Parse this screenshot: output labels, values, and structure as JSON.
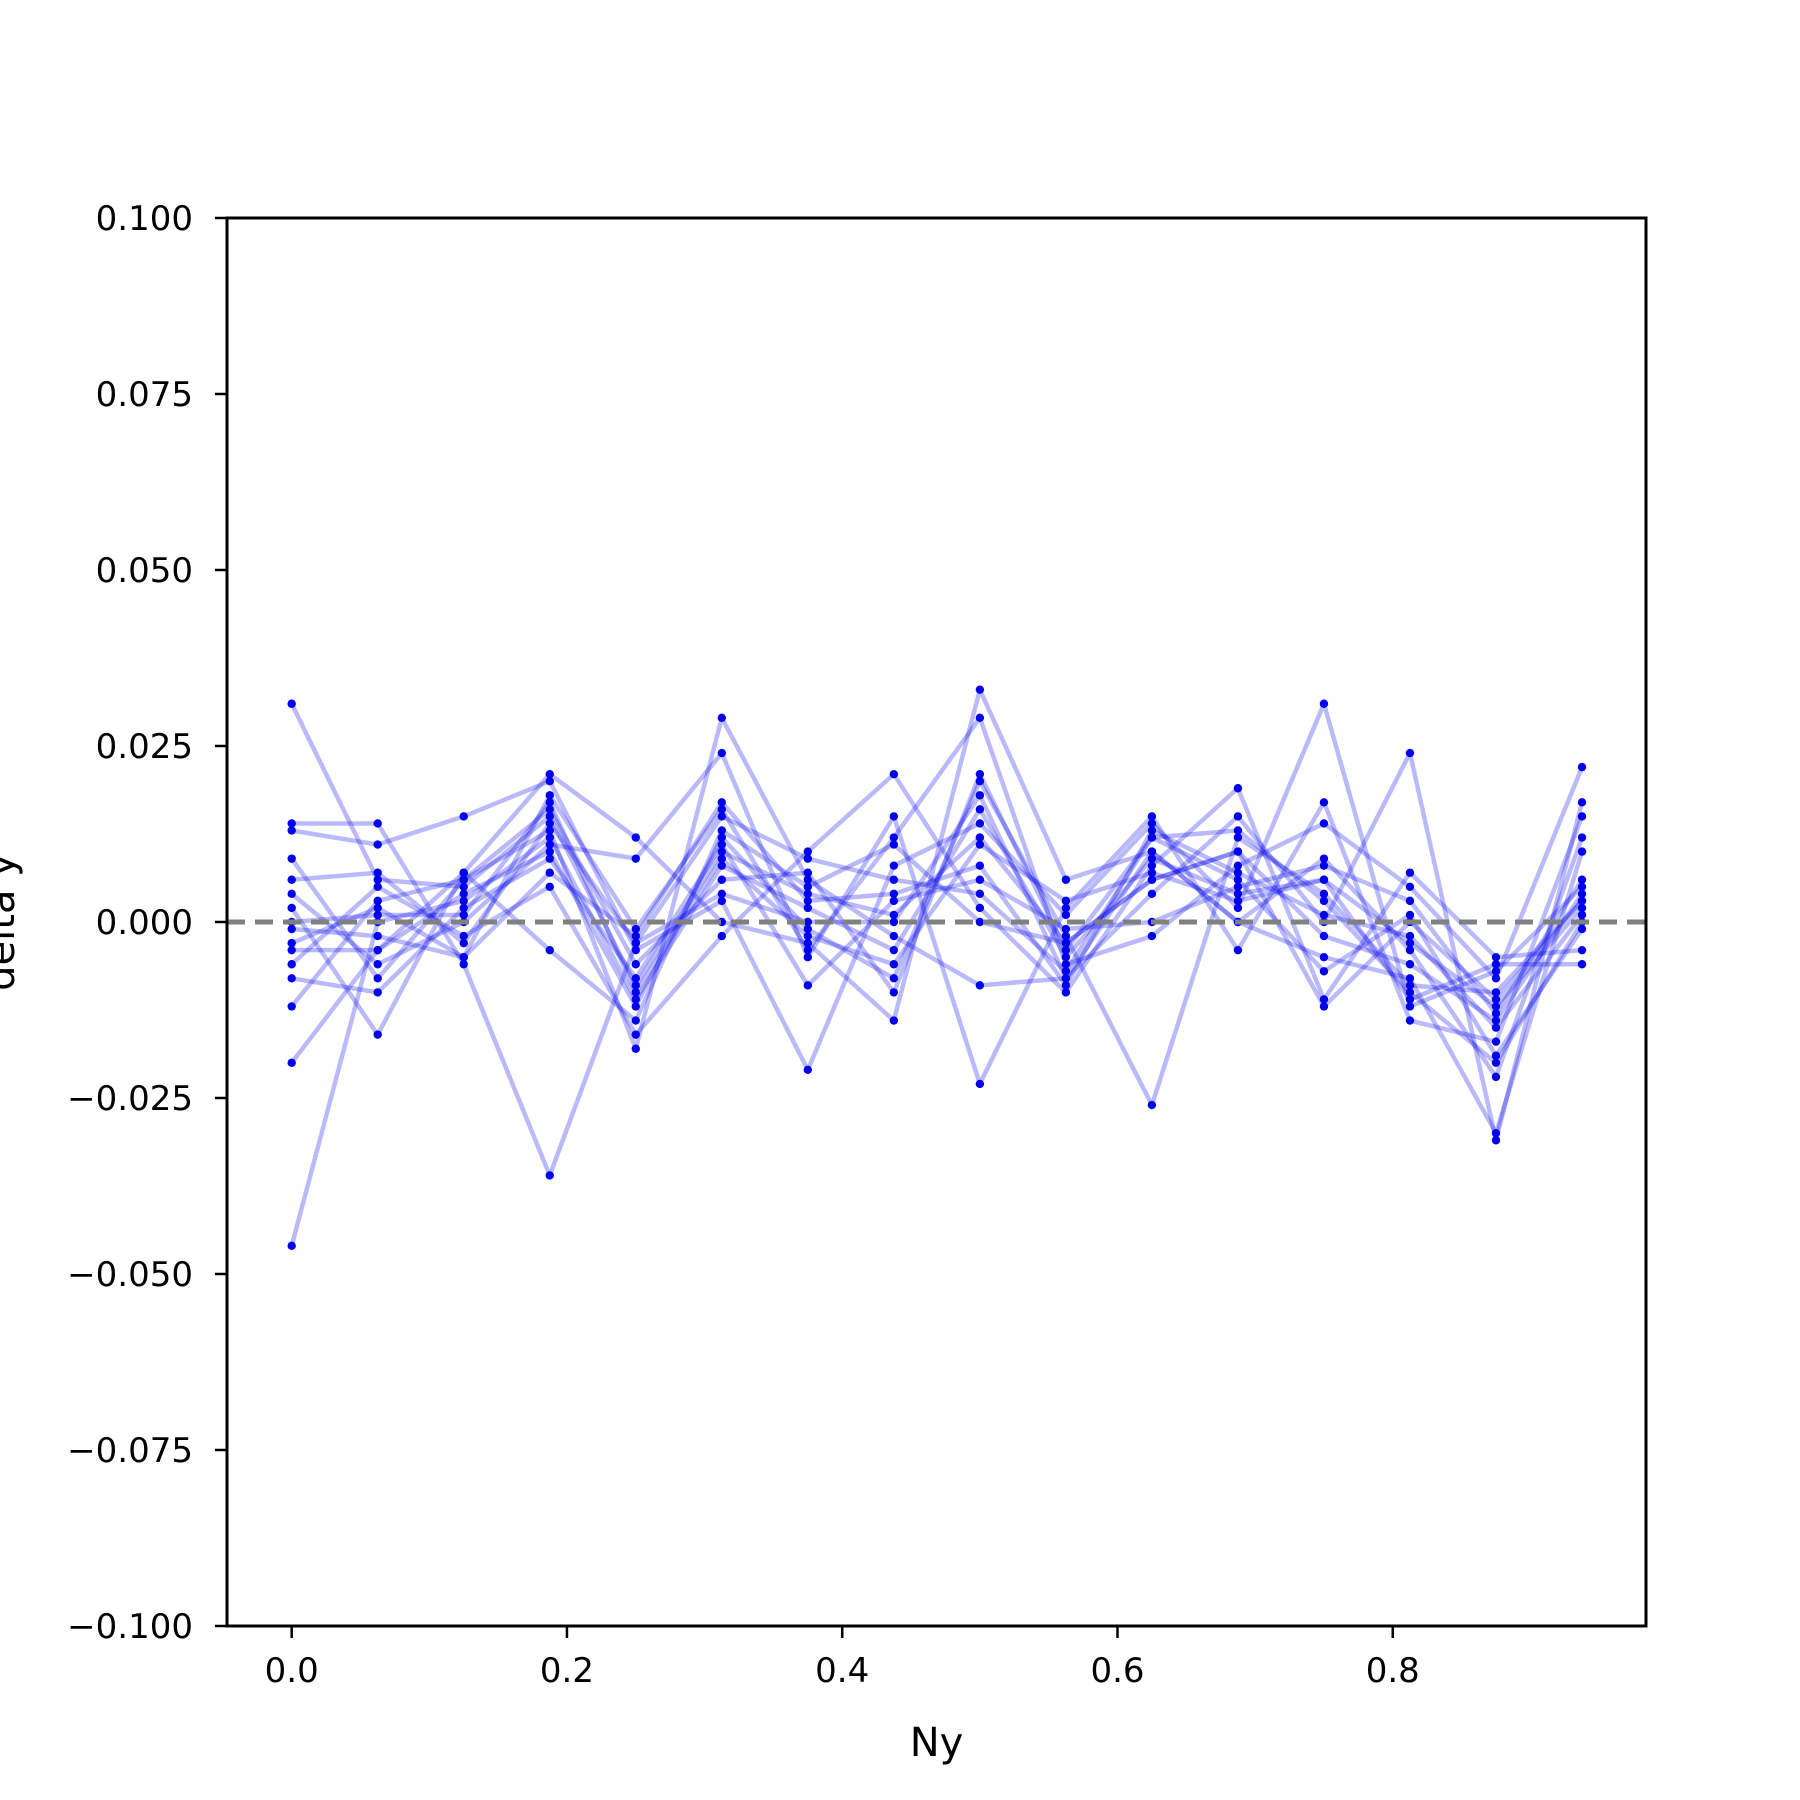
{
  "chart_data": {
    "type": "line",
    "title": "",
    "xlabel": "Ny",
    "ylabel": "delta y",
    "xlim": [
      -0.047,
      0.984
    ],
    "ylim": [
      -0.1,
      0.1
    ],
    "xticks": [
      0.0,
      0.2,
      0.4,
      0.6,
      0.8
    ],
    "xtick_labels": [
      "0.0",
      "0.2",
      "0.4",
      "0.6",
      "0.8"
    ],
    "yticks": [
      0.1,
      0.075,
      0.05,
      0.025,
      0.0,
      -0.025,
      -0.05,
      -0.075,
      -0.1
    ],
    "ytick_labels": [
      "0.100",
      "0.075",
      "0.050",
      "0.025",
      "0.000",
      "−0.025",
      "−0.050",
      "−0.075",
      "−0.100"
    ],
    "reference_line": {
      "y": 0.0,
      "style": "dashed",
      "color": "#808080"
    },
    "grid": false,
    "legend": "none",
    "series_color": "#0000ee",
    "x": [
      0.0,
      0.0625,
      0.125,
      0.1875,
      0.25,
      0.3125,
      0.375,
      0.4375,
      0.5,
      0.5625,
      0.625,
      0.6875,
      0.75,
      0.8125,
      0.875,
      0.9375
    ],
    "series": [
      {
        "values": [
          0.031,
          0.006,
          0.005,
          0.015,
          -0.009,
          0.01,
          0.004,
          0.001,
          0.012,
          -0.003,
          0.006,
          0.01,
          -0.002,
          -0.006,
          -0.014,
          0.004
        ]
      },
      {
        "values": [
          -0.046,
          0.0,
          0.003,
          0.012,
          -0.011,
          0.008,
          0.002,
          -0.004,
          0.016,
          -0.005,
          0.009,
          0.004,
          0.006,
          -0.003,
          -0.012,
          0.002
        ]
      },
      {
        "values": [
          0.014,
          0.014,
          -0.006,
          -0.036,
          -0.003,
          0.015,
          0.009,
          0.006,
          0.004,
          -0.007,
          0.012,
          0.006,
          -0.007,
          0.001,
          -0.019,
          -0.001
        ]
      },
      {
        "values": [
          -0.02,
          -0.004,
          0.004,
          0.01,
          -0.012,
          0.012,
          -0.001,
          -0.008,
          0.02,
          -0.002,
          -0.026,
          0.012,
          0.004,
          -0.009,
          -0.01,
          0.003
        ]
      },
      {
        "values": [
          0.013,
          0.011,
          0.015,
          0.02,
          -0.004,
          0.003,
          -0.021,
          0.008,
          0.014,
          0.001,
          0.014,
          0.002,
          0.031,
          -0.012,
          -0.007,
          0.005
        ]
      },
      {
        "values": [
          0.009,
          -0.008,
          0.006,
          0.013,
          -0.018,
          0.029,
          0.006,
          -0.002,
          -0.009,
          -0.008,
          0.004,
          0.015,
          0.0,
          0.024,
          -0.031,
          0.017
        ]
      },
      {
        "values": [
          -0.003,
          0.002,
          -0.005,
          0.018,
          -0.001,
          0.016,
          -0.004,
          0.012,
          0.029,
          -0.006,
          -0.002,
          0.008,
          0.014,
          0.005,
          -0.008,
          0.022
        ]
      },
      {
        "values": [
          0.002,
          -0.016,
          0.007,
          0.021,
          0.012,
          0.0,
          -0.003,
          -0.014,
          0.033,
          0.006,
          0.01,
          0.0,
          0.009,
          -0.004,
          -0.022,
          0.012
        ]
      },
      {
        "values": [
          -0.006,
          0.005,
          -0.002,
          0.005,
          -0.016,
          -0.002,
          0.01,
          0.021,
          0.002,
          -0.01,
          0.008,
          0.019,
          -0.011,
          0.007,
          -0.005,
          -0.004
        ]
      },
      {
        "values": [
          0.004,
          -0.006,
          0.0,
          0.011,
          0.009,
          0.024,
          -0.005,
          0.015,
          -0.023,
          0.002,
          0.015,
          -0.004,
          0.017,
          -0.014,
          -0.017,
          0.015
        ]
      },
      {
        "values": [
          -0.012,
          0.003,
          0.006,
          0.016,
          -0.006,
          0.006,
          0.007,
          -0.01,
          0.021,
          -0.004,
          0.012,
          0.013,
          0.003,
          -0.01,
          -0.02,
          0.0
        ]
      },
      {
        "values": [
          -0.008,
          -0.01,
          0.002,
          0.009,
          -0.008,
          0.011,
          -0.009,
          0.003,
          0.006,
          -0.001,
          0.0,
          0.005,
          0.008,
          0.003,
          -0.013,
          0.006
        ]
      },
      {
        "values": [
          0.006,
          0.007,
          -0.003,
          0.014,
          -0.003,
          0.004,
          0.0,
          0.0,
          0.018,
          -0.008,
          0.01,
          0.0,
          -0.005,
          -0.008,
          -0.03,
          0.01
        ]
      },
      {
        "values": [
          -0.004,
          -0.004,
          0.007,
          -0.004,
          -0.014,
          0.013,
          0.005,
          0.011,
          0.0,
          -0.003,
          0.006,
          0.01,
          -0.012,
          0.0,
          -0.011,
          0.003
        ]
      },
      {
        "values": [
          0.0,
          0.001,
          0.001,
          0.017,
          -0.01,
          0.009,
          -0.002,
          -0.006,
          0.011,
          0.003,
          0.007,
          0.003,
          0.006,
          -0.011,
          -0.006,
          -0.006
        ]
      },
      {
        "values": [
          -0.001,
          -0.002,
          -0.005,
          0.007,
          -0.002,
          0.017,
          0.003,
          0.004,
          0.008,
          -0.009,
          0.013,
          0.007,
          0.001,
          -0.002,
          -0.015,
          0.001
        ]
      }
    ]
  }
}
